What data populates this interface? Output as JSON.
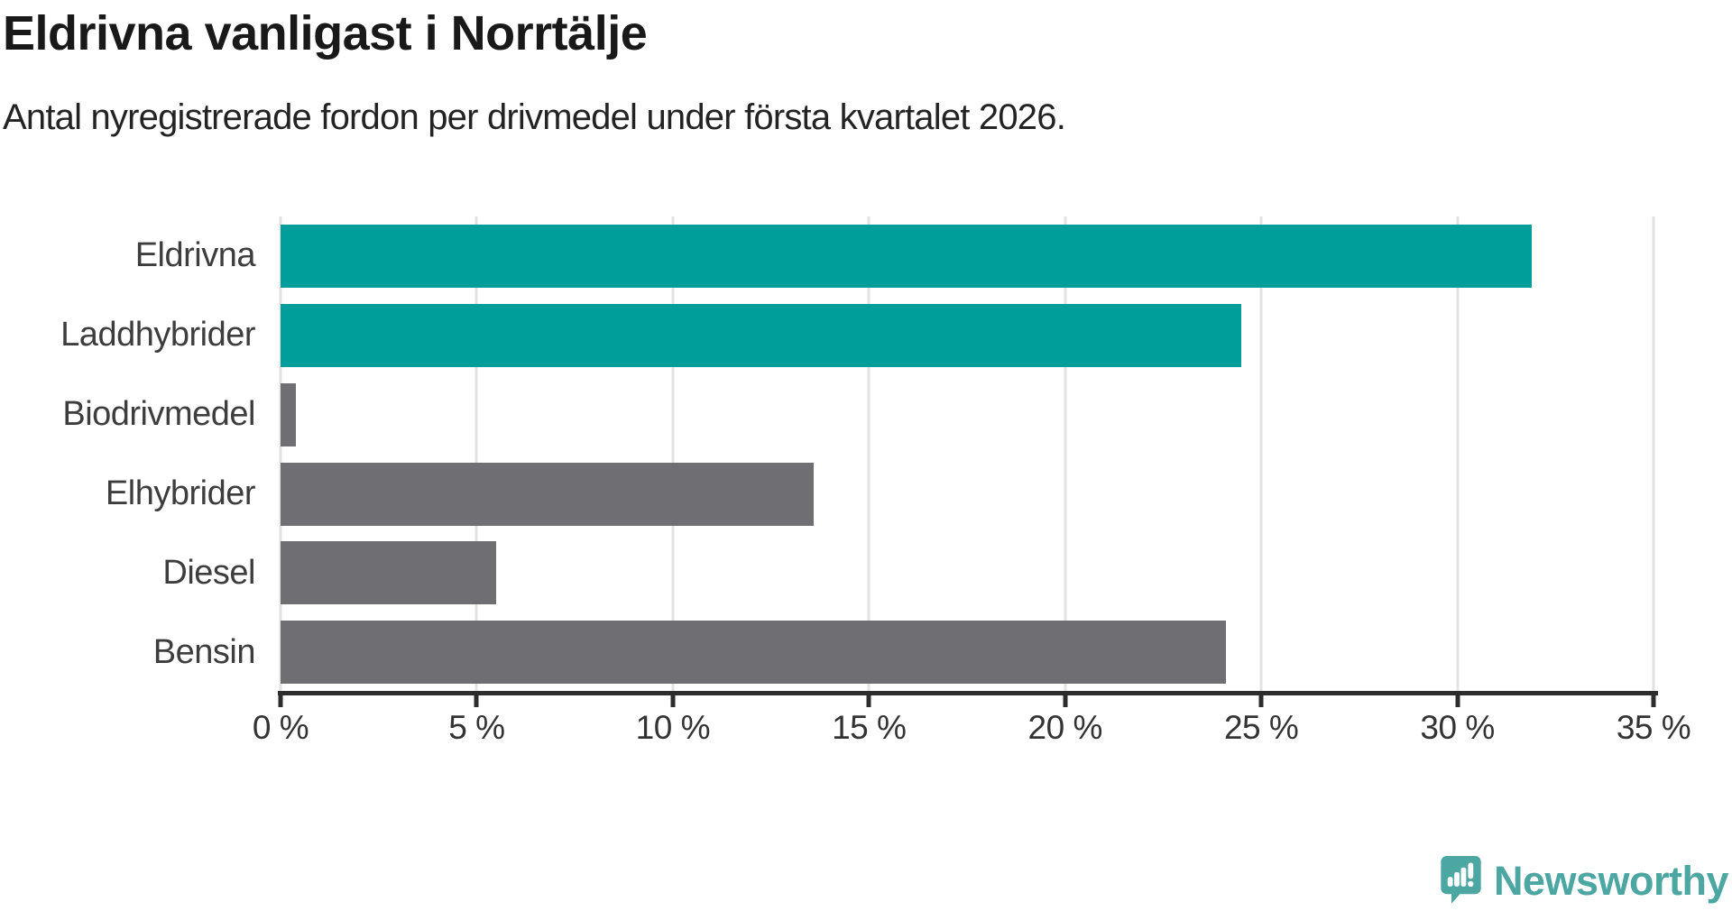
{
  "header": {
    "title": "Eldrivna vanligast i Norrtälje",
    "subtitle": "Antal nyregistrerade fordon per drivmedel under första kvartalet 2026."
  },
  "chart_data": {
    "type": "bar",
    "orientation": "horizontal",
    "title": "Eldrivna vanligast i Norrtälje",
    "subtitle": "Antal nyregistrerade fordon per drivmedel under första kvartalet 2026.",
    "categories": [
      "Eldrivna",
      "Laddhybrider",
      "Biodrivmedel",
      "Elhybrider",
      "Diesel",
      "Bensin"
    ],
    "values": [
      31.9,
      24.5,
      0.4,
      13.6,
      5.5,
      24.1
    ],
    "unit": "%",
    "bar_colors": [
      "#009e9a",
      "#009e9a",
      "#6e6e73",
      "#6e6e73",
      "#6e6e73",
      "#6e6e73"
    ],
    "highlight_color": "#009e9a",
    "default_color": "#6e6e73",
    "xlabel": "",
    "ylabel": "",
    "xlim": [
      0,
      35
    ],
    "x_ticks": [
      0,
      5,
      10,
      15,
      20,
      25,
      30,
      35
    ],
    "x_tick_labels": [
      "0 %",
      "5 %",
      "10 %",
      "15 %",
      "20 %",
      "25 %",
      "30 %",
      "35 %"
    ],
    "grid": true,
    "gridline_color": "#e3e3e3",
    "axis_color": "#2d2d2d",
    "legend": false
  },
  "branding": {
    "logo_text": "Newsworthy",
    "logo_color": "#4ca6a1"
  }
}
